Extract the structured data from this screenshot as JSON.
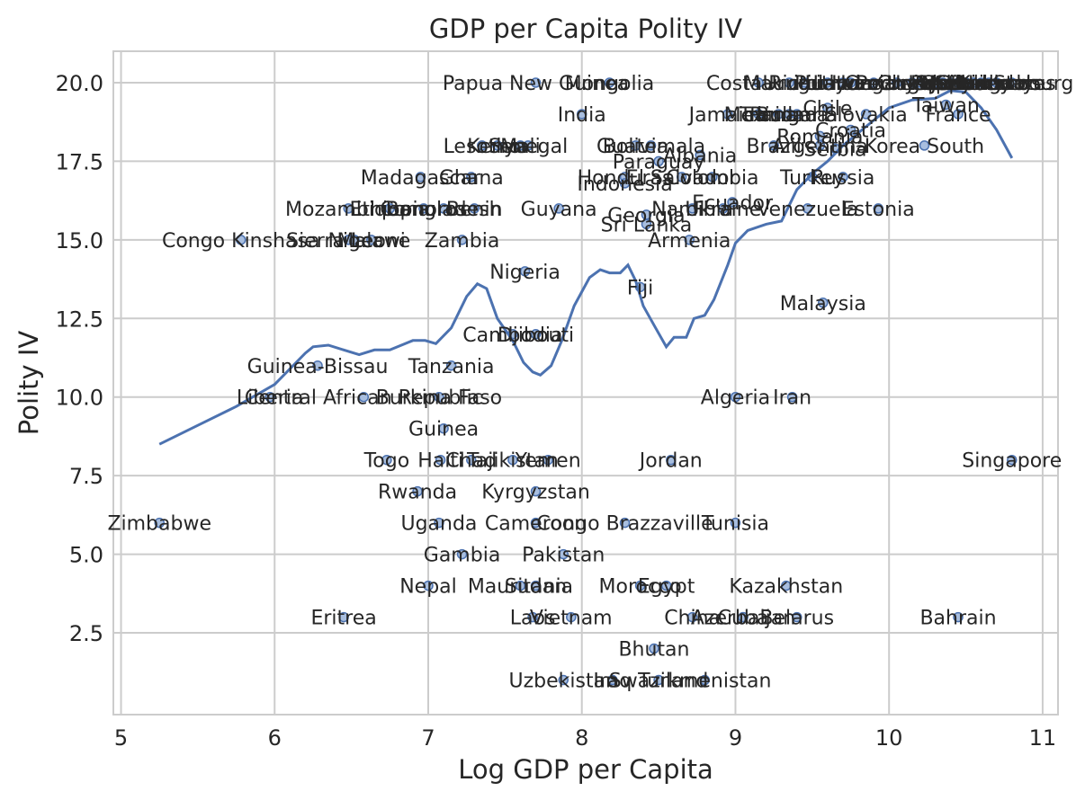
{
  "chart_data": {
    "type": "scatter",
    "title": "GDP per Capita Polity IV",
    "xlabel": "Log GDP per Capita",
    "ylabel": "Polity IV",
    "xlim": [
      4.95,
      11.1
    ],
    "ylim": [
      -0.1,
      21
    ],
    "xticks": [
      5,
      6,
      7,
      8,
      9,
      10,
      11
    ],
    "yticks": [
      2.5,
      5.0,
      7.5,
      10.0,
      12.5,
      15.0,
      17.5,
      20.0
    ],
    "xtick_labels": [
      "5",
      "6",
      "7",
      "8",
      "9",
      "10",
      "11"
    ],
    "ytick_labels": [
      "2.5",
      "5.0",
      "7.5",
      "10.0",
      "12.5",
      "15.0",
      "17.5",
      "20.0"
    ],
    "grid": true,
    "colors": {
      "marker": "#4c72b0",
      "line": "#4c72b0",
      "grid": "#cccccc",
      "axes": "#cccccc",
      "text": "#262626",
      "background": "#ffffff"
    },
    "points": [
      {
        "label": "Zimbabwe",
        "x": 5.25,
        "y": 6
      },
      {
        "label": "Congo Kinshasa",
        "x": 5.78,
        "y": 15
      },
      {
        "label": "Liberia",
        "x": 5.97,
        "y": 10
      },
      {
        "label": "Central African Republic",
        "x": 6.58,
        "y": 10
      },
      {
        "label": "Guinea-Bissau",
        "x": 6.28,
        "y": 11
      },
      {
        "label": "Sierra Leone",
        "x": 6.48,
        "y": 15
      },
      {
        "label": "Mozambique",
        "x": 6.48,
        "y": 16
      },
      {
        "label": "Niger",
        "x": 6.52,
        "y": 15
      },
      {
        "label": "Malawi",
        "x": 6.63,
        "y": 15
      },
      {
        "label": "Eritrea",
        "x": 6.45,
        "y": 3
      },
      {
        "label": "Togo",
        "x": 6.73,
        "y": 8
      },
      {
        "label": "Madagascar",
        "x": 6.95,
        "y": 17
      },
      {
        "label": "Ethiopia",
        "x": 6.75,
        "y": 16
      },
      {
        "label": "Burkina Faso",
        "x": 7.07,
        "y": 10
      },
      {
        "label": "Comoros",
        "x": 6.97,
        "y": 16
      },
      {
        "label": "Rwanda",
        "x": 6.93,
        "y": 7
      },
      {
        "label": "Nepal",
        "x": 7.0,
        "y": 4
      },
      {
        "label": "Uganda",
        "x": 7.07,
        "y": 6
      },
      {
        "label": "Guinea",
        "x": 7.1,
        "y": 9
      },
      {
        "label": "Haiti",
        "x": 7.08,
        "y": 8
      },
      {
        "label": "Tanzania",
        "x": 7.15,
        "y": 11
      },
      {
        "label": "Ghana",
        "x": 7.28,
        "y": 17
      },
      {
        "label": "Bangladesh",
        "x": 7.1,
        "y": 16
      },
      {
        "label": "Benin",
        "x": 7.3,
        "y": 16
      },
      {
        "label": "Zambia",
        "x": 7.22,
        "y": 15
      },
      {
        "label": "Gambia",
        "x": 7.22,
        "y": 5
      },
      {
        "label": "Chad",
        "x": 7.28,
        "y": 8
      },
      {
        "label": "Lesotho",
        "x": 7.35,
        "y": 18
      },
      {
        "label": "Kenya",
        "x": 7.45,
        "y": 18
      },
      {
        "label": "Mali",
        "x": 7.6,
        "y": 18
      },
      {
        "label": "Senegal",
        "x": 7.65,
        "y": 18
      },
      {
        "label": "Nigeria",
        "x": 7.63,
        "y": 14
      },
      {
        "label": "Cambodia",
        "x": 7.55,
        "y": 12
      },
      {
        "label": "Djibouti",
        "x": 7.7,
        "y": 12
      },
      {
        "label": "Tajikistan",
        "x": 7.55,
        "y": 8
      },
      {
        "label": "Yemen",
        "x": 7.78,
        "y": 8
      },
      {
        "label": "Kyrgyzstan",
        "x": 7.7,
        "y": 7
      },
      {
        "label": "Cameroon",
        "x": 7.7,
        "y": 6
      },
      {
        "label": "Mauritania",
        "x": 7.6,
        "y": 4
      },
      {
        "label": "Sudan",
        "x": 7.7,
        "y": 4
      },
      {
        "label": "Laos",
        "x": 7.68,
        "y": 3
      },
      {
        "label": "Vietnam",
        "x": 7.93,
        "y": 3
      },
      {
        "label": "Pakistan",
        "x": 7.88,
        "y": 5
      },
      {
        "label": "Uzbekistan",
        "x": 7.88,
        "y": 1
      },
      {
        "label": "Papua New Guinea",
        "x": 7.7,
        "y": 20
      },
      {
        "label": "Mongolia",
        "x": 8.18,
        "y": 20
      },
      {
        "label": "India",
        "x": 8.0,
        "y": 19
      },
      {
        "label": "Guyana",
        "x": 7.85,
        "y": 16
      },
      {
        "label": "Honduras",
        "x": 8.28,
        "y": 17
      },
      {
        "label": "Indonesia",
        "x": 8.28,
        "y": 16.8
      },
      {
        "label": "Bolivia",
        "x": 8.35,
        "y": 18
      },
      {
        "label": "Guatemala",
        "x": 8.45,
        "y": 18
      },
      {
        "label": "Paraguay",
        "x": 8.5,
        "y": 17.5
      },
      {
        "label": "Sri Lanka",
        "x": 8.42,
        "y": 15.5
      },
      {
        "label": "Georgia",
        "x": 8.42,
        "y": 15.8
      },
      {
        "label": "Fiji",
        "x": 8.38,
        "y": 13.5
      },
      {
        "label": "Armenia",
        "x": 8.7,
        "y": 15
      },
      {
        "label": "Namibia",
        "x": 8.72,
        "y": 16
      },
      {
        "label": "El Salvador",
        "x": 8.65,
        "y": 17
      },
      {
        "label": "Albania",
        "x": 8.77,
        "y": 17.7
      },
      {
        "label": "Ecuador",
        "x": 8.98,
        "y": 16.2
      },
      {
        "label": "Colombia",
        "x": 8.85,
        "y": 17
      },
      {
        "label": "Congo Brazzaville",
        "x": 8.28,
        "y": 6
      },
      {
        "label": "Morocco",
        "x": 8.38,
        "y": 4
      },
      {
        "label": "Egypt",
        "x": 8.55,
        "y": 4
      },
      {
        "label": "Bhutan",
        "x": 8.47,
        "y": 2
      },
      {
        "label": "Swaziland",
        "x": 8.5,
        "y": 1
      },
      {
        "label": "Turkmenistan",
        "x": 8.8,
        "y": 1
      },
      {
        "label": "Iraq",
        "x": 8.2,
        "y": 1
      },
      {
        "label": "China",
        "x": 8.72,
        "y": 3
      },
      {
        "label": "Azerbaijan",
        "x": 9.05,
        "y": 3
      },
      {
        "label": "Cuba",
        "x": 9.05,
        "y": 3
      },
      {
        "label": "Belarus",
        "x": 9.4,
        "y": 3
      },
      {
        "label": "Jordan",
        "x": 8.58,
        "y": 8
      },
      {
        "label": "Tunisia",
        "x": 9.0,
        "y": 6
      },
      {
        "label": "Algeria",
        "x": 9.0,
        "y": 10
      },
      {
        "label": "Iran",
        "x": 9.37,
        "y": 10
      },
      {
        "label": "Kazakhstan",
        "x": 9.33,
        "y": 4
      },
      {
        "label": "Malaysia",
        "x": 9.57,
        "y": 13
      },
      {
        "label": "Ukraine",
        "x": 8.92,
        "y": 16
      },
      {
        "label": "Venezuela",
        "x": 9.47,
        "y": 16
      },
      {
        "label": "Estonia",
        "x": 9.93,
        "y": 16
      },
      {
        "label": "Brazil",
        "x": 9.25,
        "y": 18
      },
      {
        "label": "Argentina",
        "x": 9.55,
        "y": 18
      },
      {
        "label": "Romania",
        "x": 9.55,
        "y": 18.3
      },
      {
        "label": "Croatia",
        "x": 9.75,
        "y": 18.5
      },
      {
        "label": "Serbia",
        "x": 9.65,
        "y": 17.9
      },
      {
        "label": "Turkey",
        "x": 9.5,
        "y": 17
      },
      {
        "label": "Russia",
        "x": 9.7,
        "y": 17
      },
      {
        "label": "Korea South",
        "x": 10.23,
        "y": 18
      },
      {
        "label": "Chile",
        "x": 9.6,
        "y": 19.2
      },
      {
        "label": "Slovakia",
        "x": 9.85,
        "y": 19
      },
      {
        "label": "France",
        "x": 10.45,
        "y": 19
      },
      {
        "label": "Taiwan",
        "x": 10.37,
        "y": 19.3
      },
      {
        "label": "Jamaica",
        "x": 8.95,
        "y": 19
      },
      {
        "label": "Mexico",
        "x": 9.15,
        "y": 19
      },
      {
        "label": "Trinidad",
        "x": 9.28,
        "y": 19
      },
      {
        "label": "Panama",
        "x": 9.35,
        "y": 19
      },
      {
        "label": "Bulgaria",
        "x": 9.4,
        "y": 19
      },
      {
        "label": "Costa Rica",
        "x": 9.15,
        "y": 20
      },
      {
        "label": "Mauritius",
        "x": 9.35,
        "y": 20
      },
      {
        "label": "Uruguay",
        "x": 9.45,
        "y": 20
      },
      {
        "label": "Poland",
        "x": 9.6,
        "y": 20
      },
      {
        "label": "Lithuania",
        "x": 9.75,
        "y": 20
      },
      {
        "label": "Latvia",
        "x": 9.7,
        "y": 20
      },
      {
        "label": "Hungary",
        "x": 9.9,
        "y": 20
      },
      {
        "label": "Portugal",
        "x": 10.05,
        "y": 20
      },
      {
        "label": "Greece",
        "x": 10.15,
        "y": 20
      },
      {
        "label": "Czech Republic",
        "x": 10.2,
        "y": 20
      },
      {
        "label": "Spain",
        "x": 10.35,
        "y": 20
      },
      {
        "label": "Israel",
        "x": 10.3,
        "y": 20
      },
      {
        "label": "Italy",
        "x": 10.4,
        "y": 20
      },
      {
        "label": "Japan",
        "x": 10.45,
        "y": 20
      },
      {
        "label": "Germany",
        "x": 10.5,
        "y": 20
      },
      {
        "label": "United Kingdom",
        "x": 10.5,
        "y": 20
      },
      {
        "label": "Canada",
        "x": 10.55,
        "y": 20
      },
      {
        "label": "Sweden",
        "x": 10.55,
        "y": 20
      },
      {
        "label": "Netherlands",
        "x": 10.6,
        "y": 20
      },
      {
        "label": "United States",
        "x": 10.65,
        "y": 20
      },
      {
        "label": "Norway",
        "x": 10.7,
        "y": 20
      },
      {
        "label": "Luxembourg",
        "x": 10.8,
        "y": 20
      },
      {
        "label": "Singapore",
        "x": 10.8,
        "y": 8
      },
      {
        "label": "Bahrain",
        "x": 10.45,
        "y": 3
      }
    ],
    "smooth_line": [
      [
        5.25,
        8.5
      ],
      [
        5.5,
        9.1
      ],
      [
        5.75,
        9.7
      ],
      [
        6.0,
        10.4
      ],
      [
        6.2,
        11.4
      ],
      [
        6.25,
        11.6
      ],
      [
        6.35,
        11.65
      ],
      [
        6.45,
        11.5
      ],
      [
        6.55,
        11.35
      ],
      [
        6.65,
        11.5
      ],
      [
        6.75,
        11.5
      ],
      [
        6.9,
        11.8
      ],
      [
        6.98,
        11.8
      ],
      [
        7.05,
        11.7
      ],
      [
        7.15,
        12.2
      ],
      [
        7.25,
        13.2
      ],
      [
        7.32,
        13.6
      ],
      [
        7.38,
        13.45
      ],
      [
        7.45,
        12.5
      ],
      [
        7.55,
        11.8
      ],
      [
        7.62,
        11.1
      ],
      [
        7.68,
        10.8
      ],
      [
        7.73,
        10.7
      ],
      [
        7.8,
        11.0
      ],
      [
        7.87,
        11.8
      ],
      [
        7.95,
        12.9
      ],
      [
        8.05,
        13.8
      ],
      [
        8.12,
        14.05
      ],
      [
        8.18,
        13.95
      ],
      [
        8.25,
        13.95
      ],
      [
        8.3,
        14.2
      ],
      [
        8.35,
        13.7
      ],
      [
        8.4,
        12.9
      ],
      [
        8.48,
        12.2
      ],
      [
        8.55,
        11.6
      ],
      [
        8.6,
        11.9
      ],
      [
        8.68,
        11.9
      ],
      [
        8.73,
        12.5
      ],
      [
        8.8,
        12.6
      ],
      [
        8.86,
        13.1
      ],
      [
        8.95,
        14.2
      ],
      [
        9.0,
        14.9
      ],
      [
        9.08,
        15.3
      ],
      [
        9.2,
        15.5
      ],
      [
        9.3,
        15.6
      ],
      [
        9.4,
        16.6
      ],
      [
        9.5,
        17.1
      ],
      [
        9.6,
        17.5
      ],
      [
        9.7,
        18.0
      ],
      [
        9.8,
        18.4
      ],
      [
        9.9,
        18.8
      ],
      [
        10.0,
        19.2
      ],
      [
        10.15,
        19.45
      ],
      [
        10.3,
        19.5
      ],
      [
        10.4,
        19.75
      ],
      [
        10.5,
        19.7
      ],
      [
        10.6,
        19.2
      ],
      [
        10.7,
        18.5
      ],
      [
        10.8,
        17.6
      ]
    ]
  }
}
